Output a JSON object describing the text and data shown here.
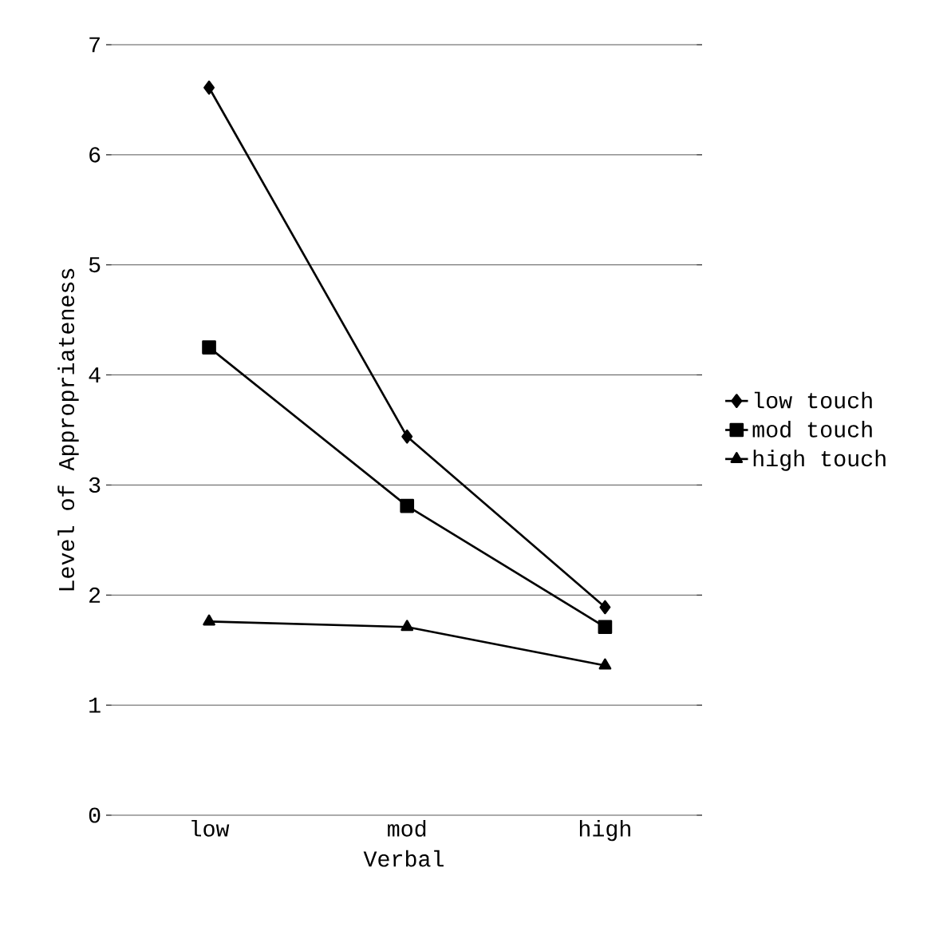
{
  "chart_data": {
    "type": "line",
    "xlabel": "Verbal",
    "ylabel": "Level of Appropriateness",
    "categories": [
      "low",
      "mod",
      "high"
    ],
    "series": [
      {
        "name": "low touch",
        "color": "#000000",
        "marker": "diamond",
        "values": [
          6.61,
          3.44,
          1.89
        ]
      },
      {
        "name": "mod touch",
        "color": "#000000",
        "marker": "square",
        "values": [
          4.25,
          2.81,
          1.71
        ]
      },
      {
        "name": "high touch",
        "color": "#000000",
        "marker": "triangle",
        "values": [
          1.76,
          1.71,
          1.36
        ]
      }
    ],
    "ylim": [
      0,
      7
    ],
    "yticks": [
      0,
      1,
      2,
      3,
      4,
      5,
      6,
      7
    ],
    "grid": "y",
    "legend": "right",
    "line_style": "solid"
  }
}
